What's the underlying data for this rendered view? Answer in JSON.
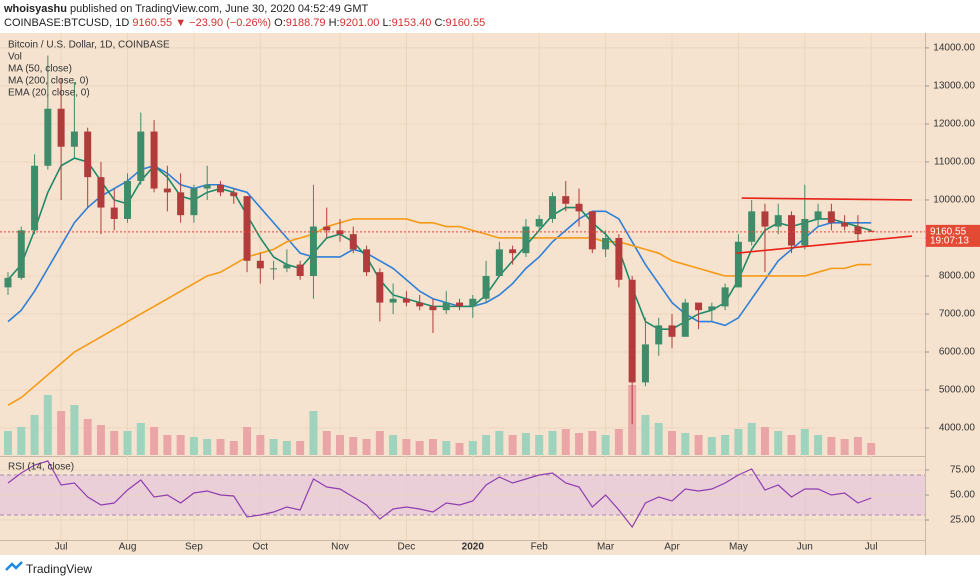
{
  "header": {
    "author": "whoisyashu",
    "published": "published on TradingView.com, June 30, 2020 04:52:49 GMT",
    "symbol": "COINBASE:BTCUSD, 1D",
    "last": "9160.55",
    "change": "▼ −23.90 (−0.26%)",
    "open_label": "O:",
    "open_value": "9188.79",
    "high_label": "H:",
    "high_value": "9201.00",
    "low_label": "L:",
    "low_value": "9153.40",
    "close_label": "C:",
    "close_value": "9160.55"
  },
  "footer": {
    "brand": "TradingView"
  },
  "chart_data": [
    {
      "type": "candlestick",
      "title": "Bitcoin / U.S. Dollar, 1D, COINBASE",
      "categories": [
        null,
        null,
        null,
        null,
        "Jul",
        null,
        null,
        null,
        null,
        "Aug",
        null,
        null,
        null,
        null,
        "Sep",
        null,
        null,
        null,
        null,
        "Oct",
        null,
        null,
        null,
        null,
        null,
        "Nov",
        null,
        null,
        null,
        null,
        "Dec",
        null,
        null,
        null,
        null,
        "2020",
        null,
        null,
        null,
        null,
        "Feb",
        null,
        null,
        null,
        null,
        "Mar",
        null,
        null,
        null,
        null,
        "Apr",
        null,
        null,
        null,
        null,
        "May",
        null,
        null,
        null,
        null,
        "Jun",
        null,
        null,
        null,
        null,
        "Jul"
      ],
      "open": [
        7700,
        7950,
        9200,
        10900,
        12400,
        11400,
        11800,
        10600,
        9800,
        9500,
        10500,
        11800,
        10300,
        10200,
        9600,
        10300,
        10400,
        10200,
        10100,
        8400,
        8200,
        8200,
        8300,
        8000,
        9300,
        9200,
        9100,
        8700,
        8100,
        7300,
        7400,
        7300,
        7200,
        7100,
        7300,
        7200,
        7400,
        8000,
        8700,
        8600,
        9300,
        9500,
        10100,
        9900,
        9700,
        8700,
        9000,
        7900,
        5200,
        6200,
        6700,
        6400,
        7300,
        7100,
        7200,
        7700,
        8900,
        9700,
        9300,
        9600,
        8800,
        9500,
        9700,
        9400,
        9300,
        9188.79
      ],
      "high": [
        8100,
        9300,
        11200,
        13800,
        13200,
        13100,
        11900,
        11000,
        10300,
        10700,
        12300,
        12100,
        10900,
        10700,
        10400,
        10900,
        10500,
        10300,
        10100,
        8600,
        8400,
        8700,
        8400,
        10400,
        9800,
        9500,
        9300,
        8800,
        8200,
        7800,
        7600,
        7500,
        7400,
        7600,
        7400,
        7500,
        8400,
        8900,
        8800,
        9500,
        9600,
        10200,
        10500,
        10300,
        9700,
        9200,
        9100,
        8000,
        6900,
        6900,
        7000,
        7400,
        7300,
        7300,
        7800,
        9100,
        10000,
        9900,
        9900,
        9700,
        10400,
        9900,
        9900,
        9600,
        9600,
        9201
      ],
      "low": [
        7500,
        7900,
        9100,
        10800,
        10000,
        11100,
        9800,
        9100,
        9200,
        9400,
        10400,
        10200,
        9700,
        9400,
        9400,
        10000,
        10100,
        9900,
        8100,
        7800,
        7900,
        8100,
        7900,
        7400,
        9000,
        8900,
        8600,
        8000,
        6800,
        7000,
        7200,
        7100,
        6500,
        7000,
        7100,
        6900,
        7300,
        8000,
        8300,
        8500,
        9200,
        9400,
        9700,
        9300,
        8600,
        8500,
        7700,
        4100,
        5100,
        5900,
        6100,
        6400,
        6600,
        6800,
        7100,
        7700,
        8800,
        8100,
        9100,
        8600,
        8700,
        9300,
        9200,
        9200,
        8900,
        9153.4
      ],
      "close": [
        7950,
        9200,
        10900,
        12400,
        11400,
        11800,
        10600,
        9800,
        9500,
        10500,
        11800,
        10300,
        10200,
        9600,
        10300,
        10400,
        10200,
        10100,
        8400,
        8200,
        8200,
        8300,
        8000,
        9300,
        9200,
        9100,
        8700,
        8100,
        7300,
        7400,
        7300,
        7200,
        7100,
        7300,
        7200,
        7400,
        8000,
        8700,
        8600,
        9300,
        9500,
        10100,
        9900,
        9700,
        8700,
        9000,
        7900,
        5200,
        6200,
        6700,
        6400,
        7300,
        7100,
        7200,
        7700,
        8900,
        9700,
        9300,
        9600,
        8800,
        9500,
        9700,
        9400,
        9300,
        9100,
        9160.55
      ],
      "up_color": "#3f8c6a",
      "down_color": "#b23b3b",
      "volume": {
        "name": "Vol",
        "up_color": "#9fd3bd",
        "down_color": "#eaa6a6",
        "values": [
          12,
          14,
          20,
          30,
          22,
          25,
          18,
          15,
          12,
          12,
          16,
          14,
          10,
          10,
          9,
          8,
          8,
          7,
          14,
          10,
          8,
          7,
          7,
          22,
          12,
          10,
          9,
          8,
          12,
          10,
          8,
          7,
          8,
          7,
          6,
          7,
          10,
          12,
          10,
          11,
          10,
          12,
          13,
          11,
          12,
          10,
          13,
          35,
          20,
          16,
          12,
          11,
          10,
          9,
          10,
          13,
          16,
          14,
          12,
          10,
          13,
          10,
          9,
          8,
          9,
          6
        ]
      },
      "series": [
        {
          "name": "MA (50, close)",
          "color": "#2f7fd8",
          "values": [
            6800,
            7100,
            7600,
            8200,
            8800,
            9400,
            9800,
            10100,
            10300,
            10500,
            10800,
            10900,
            10700,
            10400,
            10300,
            10400,
            10400,
            10300,
            10200,
            9800,
            9400,
            9000,
            8600,
            8500,
            8500,
            8500,
            8700,
            8600,
            8400,
            8200,
            7900,
            7600,
            7400,
            7300,
            7200,
            7200,
            7300,
            7500,
            7800,
            8200,
            8500,
            8900,
            9200,
            9500,
            9700,
            9700,
            9500,
            8900,
            8300,
            7800,
            7300,
            7000,
            6800,
            6800,
            6700,
            6900,
            7400,
            7900,
            8400,
            8700,
            9000,
            9300,
            9400,
            9400,
            9400,
            9400
          ]
        },
        {
          "name": "MA (200, close, 0)",
          "color": "#f59a16",
          "values": [
            4600,
            4800,
            5100,
            5400,
            5700,
            6000,
            6200,
            6400,
            6600,
            6800,
            7000,
            7200,
            7400,
            7600,
            7800,
            8000,
            8100,
            8300,
            8500,
            8600,
            8700,
            8900,
            9000,
            9100,
            9300,
            9400,
            9500,
            9500,
            9500,
            9500,
            9500,
            9400,
            9400,
            9300,
            9300,
            9200,
            9100,
            9000,
            9000,
            9000,
            9000,
            9000,
            9000,
            9000,
            9000,
            8900,
            8900,
            8800,
            8700,
            8600,
            8400,
            8300,
            8200,
            8100,
            8000,
            8000,
            8000,
            8000,
            8000,
            8000,
            8000,
            8100,
            8200,
            8200,
            8300,
            8300
          ]
        },
        {
          "name": "EMA (20, close, 0)",
          "color": "#1f8a6a",
          "values": [
            7900,
            8300,
            9200,
            10200,
            10900,
            11100,
            11000,
            10500,
            10000,
            9900,
            10500,
            10900,
            10600,
            10100,
            10000,
            10200,
            10300,
            10200,
            9600,
            9000,
            8500,
            8300,
            8200,
            8600,
            9000,
            9100,
            8900,
            8500,
            7900,
            7500,
            7400,
            7300,
            7200,
            7200,
            7200,
            7200,
            7500,
            8000,
            8400,
            8800,
            9200,
            9600,
            9800,
            9800,
            9400,
            9100,
            8700,
            7700,
            6800,
            6600,
            6600,
            6800,
            7000,
            7100,
            7300,
            7900,
            8700,
            9200,
            9400,
            9300,
            9400,
            9500,
            9500,
            9400,
            9300,
            9200
          ]
        }
      ],
      "trendlines": [
        {
          "color": "#e8231c",
          "from": 10050,
          "to": 10000
        },
        {
          "color": "#e8231c",
          "from": 8600,
          "to": 9050
        }
      ],
      "last_price": 9160.55,
      "countdown": "19:07:13",
      "last_color": "#e34a33",
      "ylim": [
        3290,
        14340
      ],
      "yticks": [
        {
          "value": 4000,
          "label": "4000.00"
        },
        {
          "value": 5000,
          "label": "5000.00"
        },
        {
          "value": 6000,
          "label": "6000.00"
        },
        {
          "value": 7000,
          "label": "7000.00"
        },
        {
          "value": 8000,
          "label": "8000.00"
        },
        {
          "value": 9000,
          "label": "9000.00"
        },
        {
          "value": 10000,
          "label": "10000.00"
        },
        {
          "value": 11000,
          "label": "11000.00"
        },
        {
          "value": 12000,
          "label": "12000.00"
        },
        {
          "value": 13000,
          "label": "13000.00"
        },
        {
          "value": 14000,
          "label": "14000.00"
        }
      ],
      "grid": true
    },
    {
      "type": "line",
      "title": "RSI (14, close)",
      "color": "#8e3fb0",
      "band": [
        30,
        70
      ],
      "band_color": "#e6c4dc",
      "values": [
        62,
        72,
        80,
        84,
        60,
        62,
        48,
        40,
        42,
        55,
        65,
        48,
        50,
        42,
        52,
        54,
        50,
        49,
        28,
        30,
        33,
        38,
        35,
        66,
        58,
        56,
        48,
        40,
        26,
        36,
        38,
        36,
        33,
        42,
        40,
        44,
        60,
        68,
        62,
        66,
        70,
        72,
        62,
        58,
        38,
        50,
        35,
        18,
        42,
        48,
        44,
        56,
        54,
        56,
        62,
        70,
        76,
        55,
        60,
        48,
        56,
        56,
        50,
        52,
        42,
        47
      ],
      "ylim": [
        5,
        85
      ],
      "yticks": [
        {
          "value": 25,
          "label": "25.00"
        },
        {
          "value": 50,
          "label": "50.00"
        },
        {
          "value": 75,
          "label": "75.00"
        }
      ]
    }
  ]
}
